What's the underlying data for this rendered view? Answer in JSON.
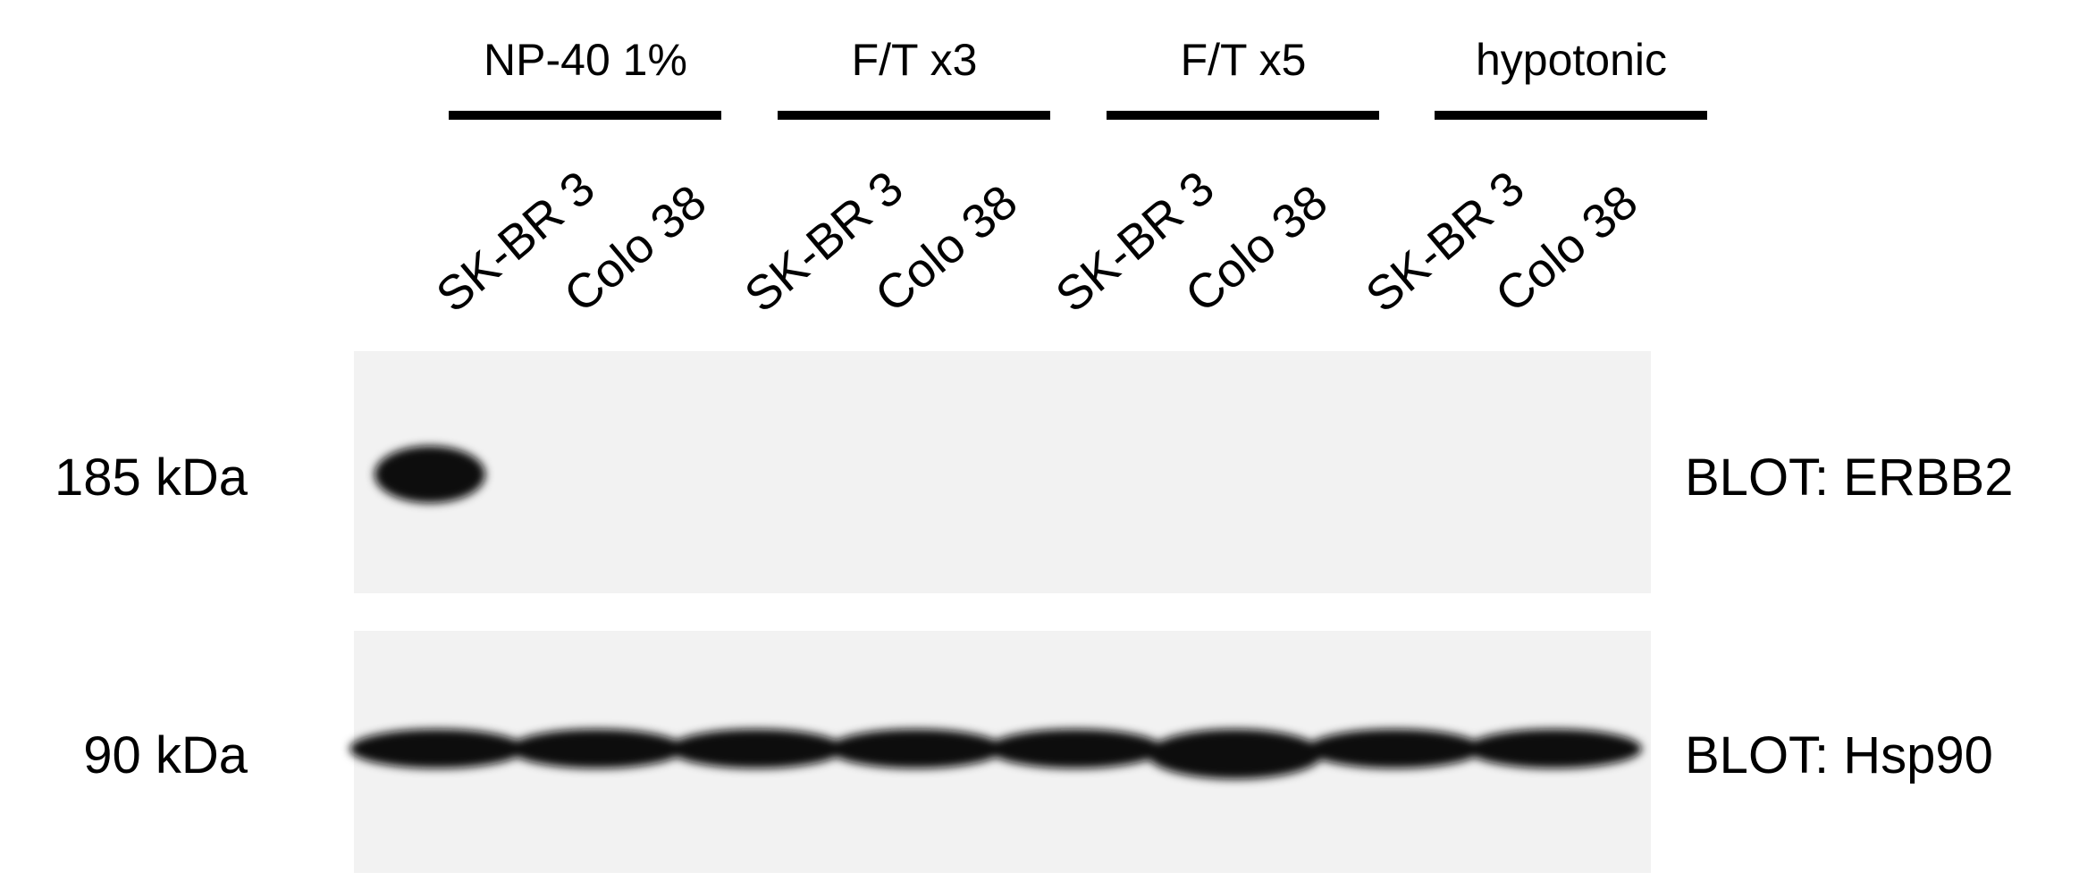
{
  "groups": [
    {
      "label": "NP-40 1%",
      "lanes": [
        "SK-BR 3",
        "Colo 38"
      ]
    },
    {
      "label": "F/T x3",
      "lanes": [
        "SK-BR 3",
        "Colo 38"
      ]
    },
    {
      "label": "F/T x5",
      "lanes": [
        "SK-BR 3",
        "Colo 38"
      ]
    },
    {
      "label": "hypotonic",
      "lanes": [
        "SK-BR 3",
        "Colo 38"
      ]
    }
  ],
  "blots": [
    {
      "marker": "185 kDa",
      "label": "BLOT: ERBB2"
    },
    {
      "marker": "90 kDa",
      "label": "BLOT: Hsp90"
    }
  ]
}
